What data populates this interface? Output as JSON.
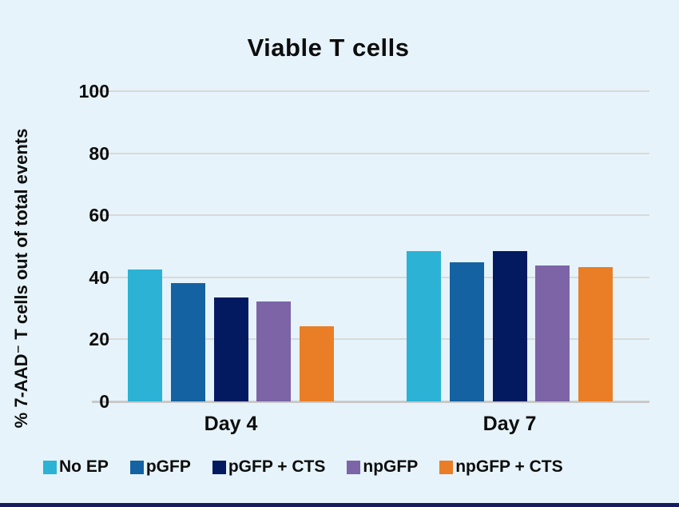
{
  "chart_data": {
    "type": "bar",
    "title": "Viable T cells",
    "ylabel": "% 7-AAD⁻ T cells out of total events",
    "xlabel": "",
    "categories": [
      "Day 4",
      "Day 7"
    ],
    "series": [
      {
        "name": "No EP",
        "color": "#2bb2d4",
        "values": [
          42.5,
          48.5
        ]
      },
      {
        "name": "pGFP",
        "color": "#1562a3",
        "values": [
          38.2,
          44.9
        ]
      },
      {
        "name": "pGFP + CTS",
        "color": "#041a60",
        "values": [
          33.5,
          48.4
        ]
      },
      {
        "name": "npGFP",
        "color": "#7c64a6",
        "values": [
          32.2,
          43.7
        ]
      },
      {
        "name": "npGFP + CTS",
        "color": "#e97e26",
        "values": [
          24.3,
          43.2
        ]
      }
    ],
    "ylim": [
      0,
      100
    ],
    "yticks": [
      0,
      20,
      40,
      60,
      80,
      100
    ],
    "grid": true,
    "legend_position": "bottom"
  },
  "colors": {
    "background": "#e6f3fa",
    "gridline": "#d9d9d9",
    "axis_line": "#c9c9c9",
    "text": "#0d0d0d",
    "bottom_bar": "#161c5d"
  }
}
